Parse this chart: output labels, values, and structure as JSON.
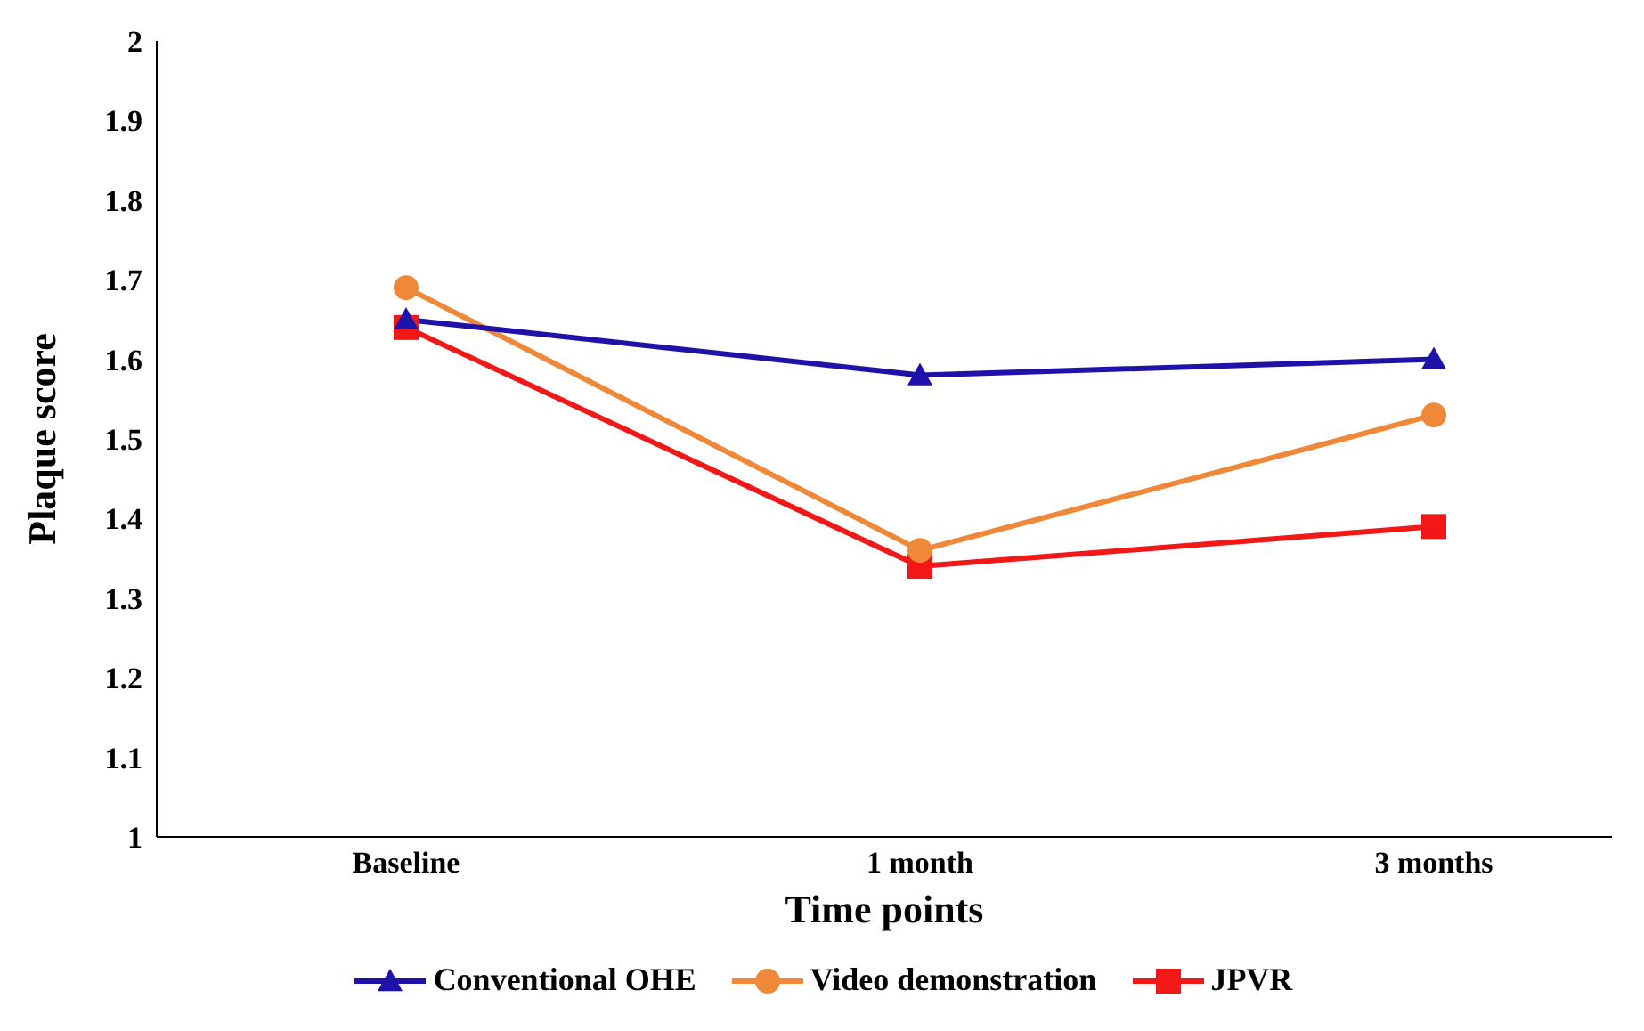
{
  "chart_data": {
    "type": "line",
    "xlabel": "Time points",
    "ylabel": "Plaque score",
    "categories": [
      "Baseline",
      "1 month",
      "3 months"
    ],
    "series": [
      {
        "name": "Conventional OHE",
        "color": "#1f12a8",
        "marker": "triangle",
        "values": [
          1.65,
          1.58,
          1.6
        ]
      },
      {
        "name": "Video demonstration",
        "color": "#f0883a",
        "marker": "circle",
        "values": [
          1.69,
          1.36,
          1.53
        ]
      },
      {
        "name": "JPVR",
        "color": "#f21818",
        "marker": "square",
        "values": [
          1.64,
          1.34,
          1.39
        ]
      }
    ],
    "ylim": [
      1,
      2
    ],
    "yticks": [
      1,
      1.1,
      1.2,
      1.3,
      1.4,
      1.5,
      1.6,
      1.7,
      1.8,
      1.9,
      2
    ],
    "grid": false,
    "legend": "bottom"
  }
}
